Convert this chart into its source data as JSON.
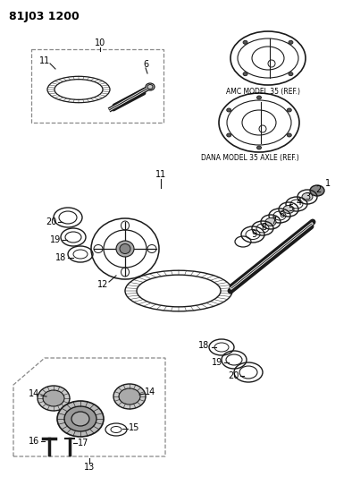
{
  "title": "81J03 1200",
  "bg_color": "#ffffff",
  "lc": "#1a1a1a",
  "amc_label": "AMC MODEL 35 (REF.)",
  "dana_label": "DANA MODEL 35 AXLE (REF.)"
}
